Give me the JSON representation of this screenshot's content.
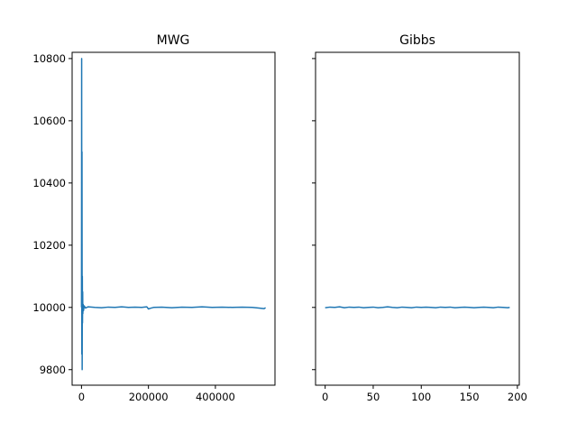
{
  "chart_data": [
    {
      "type": "line",
      "title": "MWG",
      "xlabel": "",
      "ylabel": "",
      "xlim": [
        -28000,
        578000
      ],
      "ylim": [
        9750,
        10820
      ],
      "xticks": [
        0,
        200000,
        400000
      ],
      "xtick_labels": [
        "0",
        "200000",
        "400000"
      ],
      "yticks": [
        9800,
        10000,
        10200,
        10400,
        10600,
        10800
      ],
      "ytick_labels": [
        "9800",
        "10000",
        "10200",
        "10400",
        "10600",
        "10800"
      ],
      "grid": false,
      "color": "#1f77b4",
      "series": [
        {
          "x": [
            0,
            500,
            1000,
            1500,
            2000,
            2500,
            3000,
            3500,
            4000,
            5000,
            6000,
            8000,
            12000,
            20000,
            40000,
            60000,
            80000,
            100000,
            120000,
            140000,
            160000,
            180000,
            195000,
            200000,
            205000,
            215000,
            240000,
            270000,
            300000,
            330000,
            360000,
            390000,
            420000,
            450000,
            480000,
            510000,
            530000,
            545000,
            550000
          ],
          "y": [
            10000,
            10800,
            9850,
            10500,
            9800,
            10100,
            9950,
            10050,
            9980,
            10010,
            9990,
            10005,
            9998,
            10002,
            10000,
            9999,
            10001,
            10000,
            10002,
            10000,
            10001,
            10000,
            10002,
            9995,
            9997,
            10000,
            10001,
            9999,
            10001,
            10000,
            10002,
            10000,
            10001,
            10000,
            10001,
            10000,
            9998,
            9996,
            9999
          ]
        }
      ]
    },
    {
      "type": "line",
      "title": "Gibbs",
      "xlabel": "",
      "ylabel": "",
      "xlim": [
        -10,
        202
      ],
      "ylim": [
        9750,
        10820
      ],
      "xticks": [
        0,
        50,
        100,
        150,
        200
      ],
      "xtick_labels": [
        "0",
        "50",
        "100",
        "150",
        "200"
      ],
      "yticks": [
        9800,
        10000,
        10200,
        10400,
        10600,
        10800
      ],
      "ytick_labels": [],
      "grid": false,
      "color": "#1f77b4",
      "series": [
        {
          "x": [
            0,
            5,
            10,
            15,
            20,
            25,
            30,
            35,
            40,
            45,
            50,
            55,
            60,
            65,
            70,
            75,
            80,
            85,
            90,
            95,
            100,
            105,
            110,
            115,
            120,
            125,
            130,
            135,
            140,
            145,
            150,
            155,
            160,
            165,
            170,
            175,
            180,
            185,
            190,
            192
          ],
          "y": [
            9999,
            10001,
            10000,
            10002,
            9999,
            10001,
            10000,
            10001,
            9999,
            10000,
            10001,
            9999,
            10000,
            10002,
            10000,
            9999,
            10001,
            10000,
            9999,
            10001,
            10000,
            10001,
            10000,
            9999,
            10001,
            10000,
            10001,
            9999,
            10000,
            10001,
            10000,
            9999,
            10000,
            10001,
            10000,
            9999,
            10001,
            10000,
            9999,
            10000
          ]
        }
      ]
    }
  ]
}
